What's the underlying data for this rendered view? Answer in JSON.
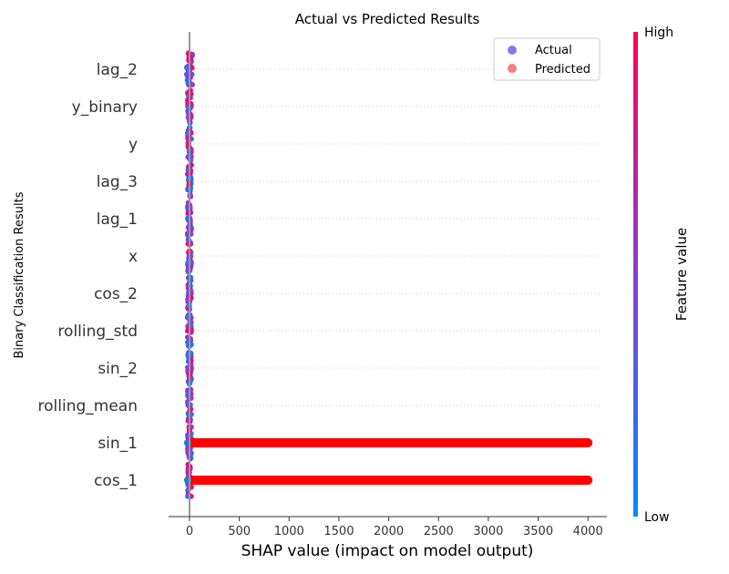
{
  "chart_data": {
    "type": "scatter",
    "title": "Actual vs Predicted Results",
    "xlabel": "SHAP value (impact on model output)",
    "ylabel": "Binary Classification Results",
    "xlim": [
      -210,
      4190
    ],
    "xticks": [
      0,
      500,
      1000,
      1500,
      2000,
      2500,
      3000,
      3500,
      4000
    ],
    "features": [
      "lag_2",
      "y_binary",
      "y",
      "lag_3",
      "lag_1",
      "x",
      "cos_2",
      "rolling_std",
      "sin_2",
      "rolling_mean",
      "sin_1",
      "cos_1"
    ],
    "grid": "horizontal dotted",
    "series": [
      {
        "name": "Actual",
        "color": "#5b5be8",
        "description_values": {
          "lag_2": [
            0,
            0
          ],
          "y_binary": [
            0,
            0
          ],
          "y": [
            0,
            0
          ],
          "lag_3": [
            0,
            0
          ],
          "lag_1": [
            0,
            0
          ],
          "x": [
            0,
            0
          ],
          "cos_2": [
            0,
            0
          ],
          "rolling_std": [
            0,
            0
          ],
          "sin_2": [
            0,
            0
          ],
          "rolling_mean": [
            0,
            0
          ],
          "sin_1": [
            0,
            0
          ],
          "cos_1": [
            0,
            0
          ]
        }
      },
      {
        "name": "Predicted",
        "color": "#f47070",
        "ranges": {
          "sin_1": [
            0,
            4000
          ],
          "cos_1": [
            0,
            4000
          ]
        }
      }
    ],
    "legend": {
      "position": "top-right",
      "items": [
        "Actual",
        "Predicted"
      ]
    },
    "colorbar": {
      "label": "Feature value",
      "high": "High",
      "low": "Low",
      "colors": [
        "#008bfb",
        "#ff0052"
      ]
    }
  }
}
